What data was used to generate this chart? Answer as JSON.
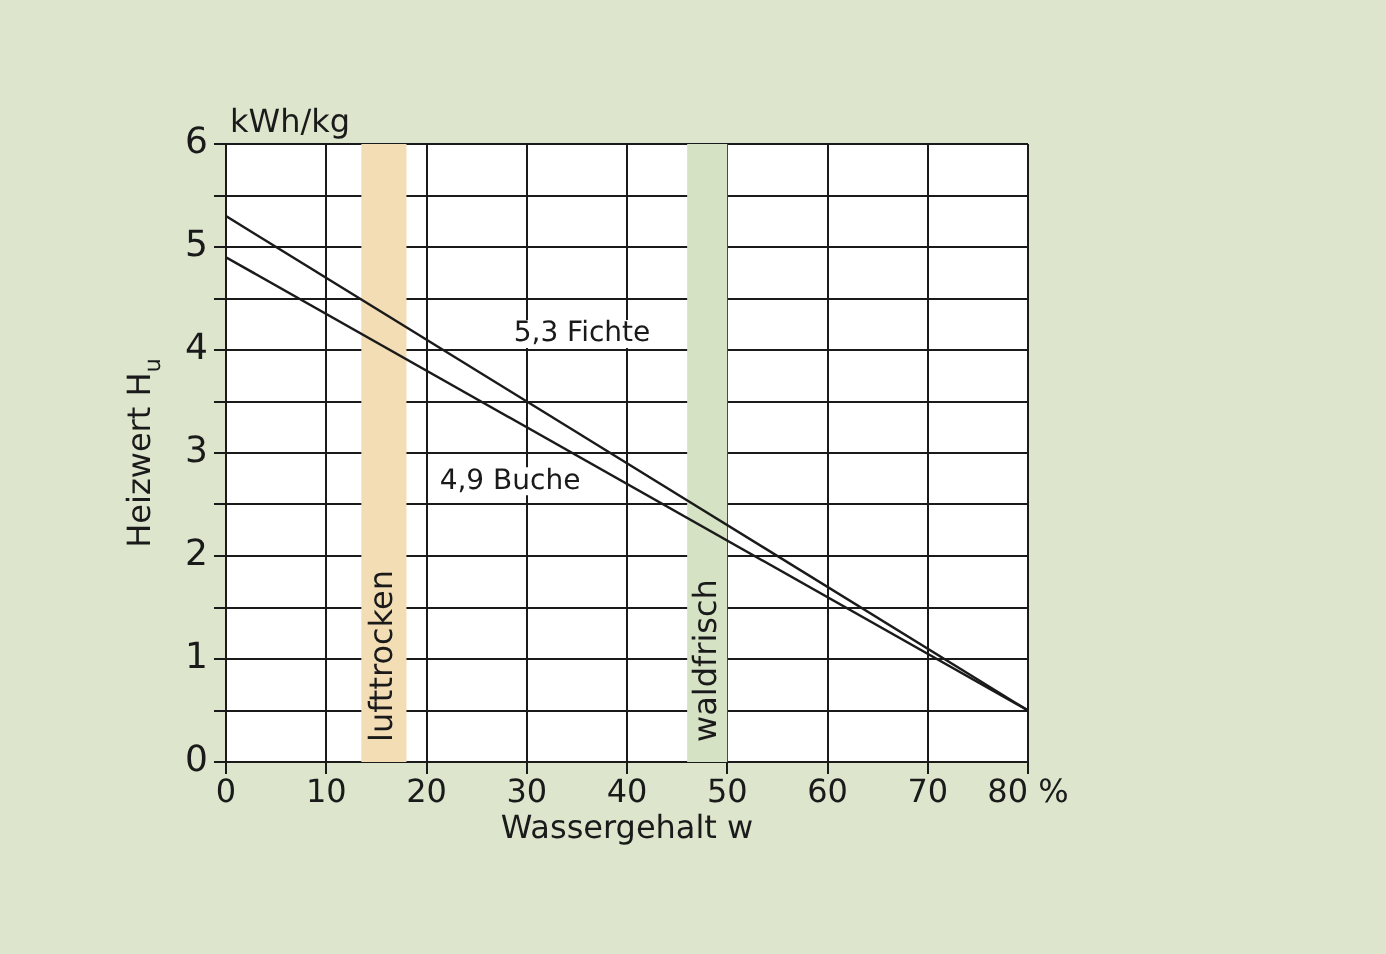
{
  "chart_data": {
    "type": "line",
    "xlabel": "Wassergehalt w",
    "ylabel": "Heizwert H$_{u}$",
    "annotations": [
      "kWh/kg"
    ],
    "x": [
      0,
      80
    ],
    "series": [
      {
        "name": "5,3 Fichte",
        "color": "#1a1a1a",
        "values": [
          5.3,
          0.5
        ]
      },
      {
        "name": "4,9 Buche",
        "color": "#1a1a1a",
        "values": [
          4.9,
          0.5
        ]
      }
    ],
    "bands": [
      {
        "axis": "x",
        "from": 13.5,
        "to": 18,
        "label": "lufttrocken",
        "color": "#f2ddb5"
      },
      {
        "axis": "x",
        "from": 46,
        "to": 50,
        "label": "waldfrisch",
        "color": "#d5e2c4"
      }
    ],
    "xlim": [
      0,
      80
    ],
    "xticks": [
      0,
      10,
      20,
      30,
      40,
      50,
      60,
      70,
      {
        "value": 80,
        "label": "80 %"
      }
    ],
    "ylim": [
      0,
      6
    ],
    "yticks": [
      0,
      {
        "value": 0.5,
        "label": null
      },
      1,
      {
        "value": 1.5,
        "label": null
      },
      2,
      {
        "value": 2.5,
        "label": null
      },
      3,
      {
        "value": 3.5,
        "label": null
      },
      4,
      {
        "value": 4.5,
        "label": null
      },
      5,
      {
        "value": 5.5,
        "label": null
      },
      6
    ],
    "grid": true,
    "legend": false,
    "marker": "none",
    "line_style": "solid"
  }
}
